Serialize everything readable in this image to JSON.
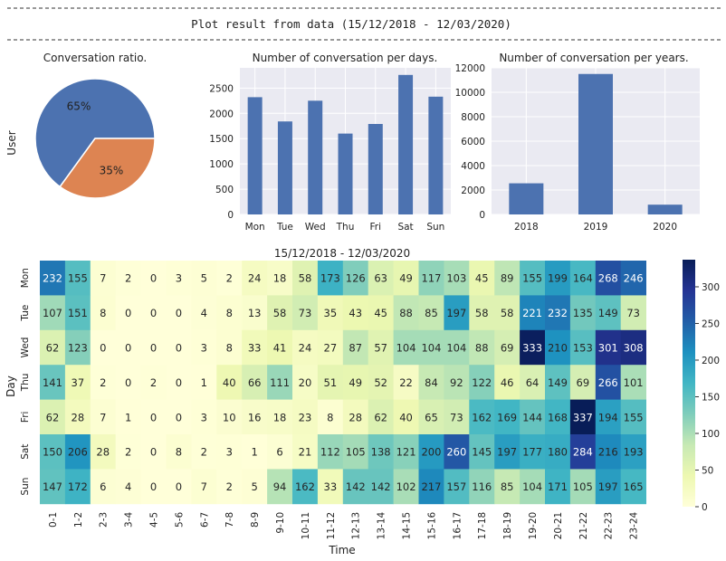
{
  "header": {
    "title": "Plot result from data (15/12/2018 - 12/03/2020)"
  },
  "chart_data": [
    {
      "type": "pie",
      "title": "Conversation ratio.",
      "ylabel": "User",
      "slices": [
        {
          "percent": 65,
          "label": "65%",
          "color": "#4c72b0"
        },
        {
          "percent": 35,
          "label": "35%",
          "color": "#dd8452"
        }
      ]
    },
    {
      "type": "bar",
      "title": "Number of conversation per days.",
      "categories": [
        "Mon",
        "Tue",
        "Wed",
        "Thu",
        "Fri",
        "Sat",
        "Sun"
      ],
      "values": [
        2320,
        1840,
        2250,
        1600,
        1790,
        2760,
        2330
      ],
      "yticks": [
        0,
        500,
        1000,
        1500,
        2000,
        2500
      ],
      "ylim": [
        0,
        2900
      ],
      "color": "#4c72b0",
      "background": "#eaeaf2"
    },
    {
      "type": "bar",
      "title": "Number of conversation per years.",
      "categories": [
        "2018",
        "2019",
        "2020"
      ],
      "values": [
        2550,
        11500,
        800
      ],
      "yticks": [
        0,
        2000,
        4000,
        6000,
        8000,
        10000,
        12000
      ],
      "ylim": [
        0,
        12000
      ],
      "color": "#4c72b0",
      "background": "#eaeaf2"
    },
    {
      "type": "heatmap",
      "title": "15/12/2018 - 12/03/2020",
      "xlabel": "Time",
      "ylabel": "Day",
      "rows": [
        "Mon",
        "Tue",
        "Wed",
        "Thu",
        "Fri",
        "Sat",
        "Sun"
      ],
      "cols": [
        "0-1",
        "1-2",
        "2-3",
        "3-4",
        "4-5",
        "5-6",
        "6-7",
        "7-8",
        "8-9",
        "9-10",
        "10-11",
        "11-12",
        "12-13",
        "13-14",
        "14-15",
        "15-16",
        "16-17",
        "17-18",
        "18-19",
        "19-20",
        "20-21",
        "21-22",
        "22-23",
        "23-24"
      ],
      "values": [
        [
          232,
          155,
          7,
          2,
          0,
          3,
          5,
          2,
          24,
          18,
          58,
          173,
          126,
          63,
          49,
          117,
          103,
          45,
          89,
          155,
          199,
          164,
          268,
          246
        ],
        [
          107,
          151,
          8,
          0,
          0,
          0,
          4,
          8,
          13,
          58,
          73,
          35,
          43,
          45,
          88,
          85,
          197,
          58,
          58,
          221,
          232,
          135,
          149,
          73
        ],
        [
          62,
          123,
          0,
          0,
          0,
          0,
          3,
          8,
          33,
          41,
          24,
          27,
          87,
          57,
          104,
          104,
          104,
          88,
          69,
          333,
          210,
          153,
          301,
          308
        ],
        [
          141,
          37,
          2,
          0,
          2,
          0,
          1,
          40,
          66,
          111,
          20,
          51,
          49,
          52,
          22,
          84,
          92,
          122,
          46,
          64,
          149,
          69,
          266,
          101
        ],
        [
          62,
          28,
          7,
          1,
          0,
          0,
          3,
          10,
          16,
          18,
          23,
          8,
          28,
          62,
          40,
          65,
          73,
          162,
          169,
          144,
          168,
          337,
          194,
          155
        ],
        [
          150,
          206,
          28,
          2,
          0,
          8,
          2,
          3,
          1,
          6,
          21,
          112,
          105,
          138,
          121,
          200,
          260,
          145,
          197,
          177,
          180,
          284,
          216,
          193
        ],
        [
          147,
          172,
          6,
          4,
          0,
          0,
          7,
          2,
          5,
          94,
          162,
          33,
          142,
          142,
          102,
          217,
          157,
          116,
          85,
          104,
          171,
          105,
          197,
          165
        ]
      ],
      "vmin": 0,
      "vmax": 337,
      "colorbar_ticks": [
        0,
        50,
        100,
        150,
        200,
        250,
        300
      ],
      "colormap": "YlGnBu"
    }
  ]
}
